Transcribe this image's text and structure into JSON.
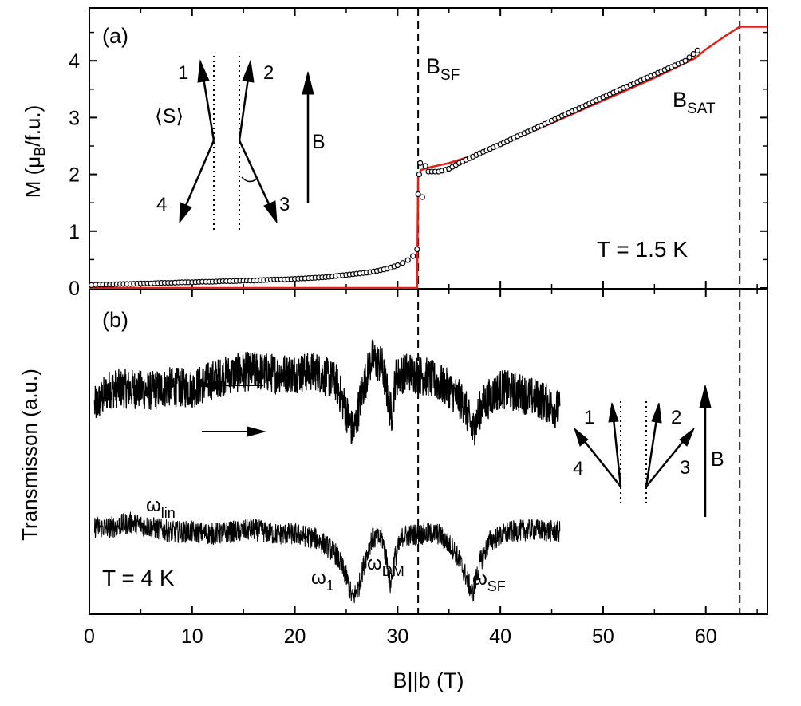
{
  "chart_data": [
    {
      "panel": "a",
      "type": "line",
      "panel_label": "(a)",
      "ylabel": "M (μB/f.u.)",
      "ylabel_main": "M (μ",
      "ylabel_sub": "B",
      "ylabel_tail": "/f.u.)",
      "xlim": [
        0,
        66
      ],
      "ylim": [
        0,
        4.6
      ],
      "yticks": [
        0,
        1,
        2,
        3,
        4
      ],
      "annotations": {
        "temperature": "T = 1.5 K",
        "b_sf_main": "B",
        "b_sf_sub": "SF",
        "b_sat_main": "B",
        "b_sat_sub": "SAT",
        "spin_avg": "⟨S⟩",
        "field": "B",
        "sublattice_labels": [
          "1",
          "2",
          "3",
          "4"
        ]
      },
      "vlines": [
        32,
        63.3
      ],
      "series": [
        {
          "style": "open-circles",
          "x": [
            0.2,
            1,
            2,
            3,
            4,
            5,
            6,
            7,
            8,
            9,
            10,
            11,
            12,
            13,
            14,
            15,
            16,
            17,
            18,
            19,
            20,
            21,
            22,
            23,
            24,
            25,
            26,
            27,
            28,
            29,
            30,
            30.5,
            31,
            31.5,
            31.9,
            32,
            32.1,
            32.2,
            32.4,
            32.7,
            33,
            34,
            35,
            36,
            38,
            40,
            42,
            44,
            46,
            48,
            50,
            52,
            54,
            56,
            58,
            59.2
          ],
          "y": [
            0.05,
            0.06,
            0.06,
            0.07,
            0.07,
            0.08,
            0.08,
            0.09,
            0.09,
            0.1,
            0.1,
            0.11,
            0.11,
            0.12,
            0.12,
            0.13,
            0.13,
            0.14,
            0.15,
            0.15,
            0.16,
            0.17,
            0.18,
            0.19,
            0.21,
            0.23,
            0.25,
            0.27,
            0.3,
            0.34,
            0.4,
            0.44,
            0.49,
            0.56,
            0.68,
            1.65,
            2.0,
            2.2,
            1.6,
            2.15,
            2.05,
            2.05,
            2.1,
            2.2,
            2.37,
            2.53,
            2.7,
            2.86,
            3.03,
            3.19,
            3.36,
            3.52,
            3.68,
            3.84,
            4.0,
            4.18
          ]
        },
        {
          "style": "red-line",
          "color": "#e0201b",
          "x": [
            0,
            31.9,
            32.0,
            32.3,
            33,
            35,
            38,
            40,
            45,
            50,
            55,
            59,
            60,
            62,
            63.3,
            66
          ],
          "y": [
            0,
            0,
            2.0,
            2.08,
            2.12,
            2.2,
            2.37,
            2.52,
            2.9,
            3.3,
            3.7,
            4.05,
            4.2,
            4.45,
            4.6,
            4.6
          ]
        }
      ]
    },
    {
      "panel": "b",
      "type": "line",
      "panel_label": "(b)",
      "ylabel": "Transmisson (a.u.)",
      "xlabel": "B||b (T)",
      "xlim": [
        0,
        66
      ],
      "xticks": [
        0,
        10,
        20,
        30,
        40,
        50,
        60
      ],
      "annotations": {
        "temperature": "T = 4 K",
        "omega_lin_main": "ω",
        "omega_lin_sub": "lin",
        "omega_1_main": "ω",
        "omega_1_sub": "1",
        "omega_dm_main": "ω",
        "omega_dm_sub": "DM",
        "omega_sf_main": "ω",
        "omega_sf_sub": "SF",
        "field": "B",
        "sublattice_labels": [
          "1",
          "2",
          "3",
          "4"
        ]
      },
      "vlines": [
        32,
        63.3
      ],
      "series": [
        {
          "direction": "down-sweep",
          "x": [
            0.5,
            2,
            4,
            6,
            8,
            10,
            12,
            14,
            16,
            18,
            20,
            22,
            24,
            25,
            25.7,
            26.5,
            27.5,
            28.5,
            29,
            29.4,
            29.8,
            31,
            33,
            35,
            36.5,
            37.3,
            38.2,
            40,
            42,
            44,
            45.8
          ],
          "y": [
            0.84,
            0.92,
            0.92,
            0.91,
            0.93,
            0.92,
            0.96,
            0.99,
            1.0,
            0.99,
            0.99,
            1.0,
            0.95,
            0.82,
            0.72,
            0.9,
            1.06,
            1.02,
            0.9,
            0.8,
            0.97,
            1.0,
            0.97,
            0.92,
            0.85,
            0.73,
            0.85,
            0.92,
            0.9,
            0.87,
            0.82
          ]
        },
        {
          "direction": "up-sweep",
          "x": [
            0.5,
            2,
            4,
            6,
            8,
            10,
            12,
            14,
            16,
            18,
            20,
            22,
            23,
            24,
            25,
            25.6,
            26.2,
            26.8,
            27.5,
            28.5,
            29,
            29.3,
            29.7,
            30.5,
            32,
            34,
            35.5,
            36.5,
            37.3,
            38,
            39,
            41,
            43,
            45.8
          ],
          "y": [
            0.3,
            0.3,
            0.32,
            0.3,
            0.28,
            0.28,
            0.27,
            0.28,
            0.29,
            0.27,
            0.27,
            0.25,
            0.22,
            0.18,
            0.08,
            -0.02,
            0.03,
            0.15,
            0.25,
            0.25,
            0.14,
            0.04,
            0.16,
            0.26,
            0.27,
            0.27,
            0.2,
            0.1,
            0.0,
            0.14,
            0.24,
            0.28,
            0.29,
            0.28
          ]
        }
      ]
    }
  ]
}
